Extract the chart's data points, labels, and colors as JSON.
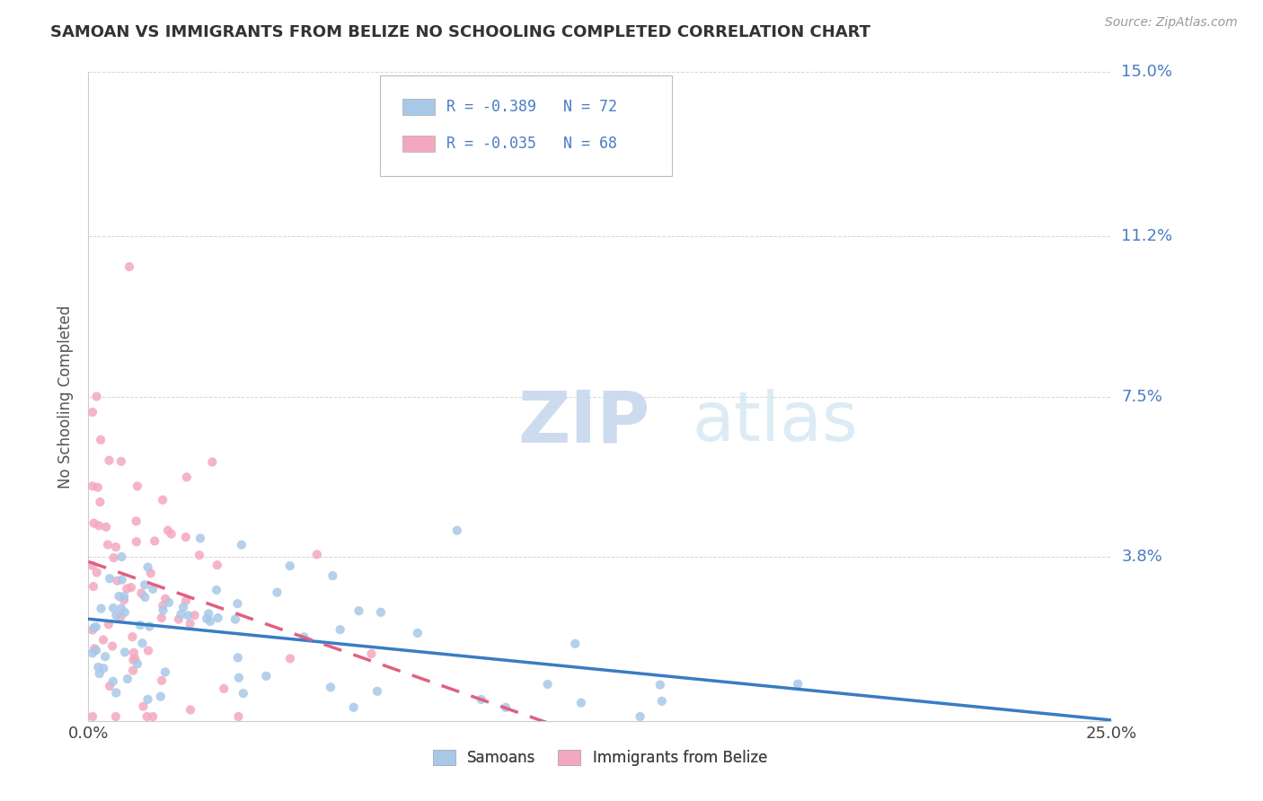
{
  "title": "SAMOAN VS IMMIGRANTS FROM BELIZE NO SCHOOLING COMPLETED CORRELATION CHART",
  "source_text": "Source: ZipAtlas.com",
  "ylabel": "No Schooling Completed",
  "xlim": [
    0.0,
    0.25
  ],
  "ylim": [
    0.0,
    0.15
  ],
  "xticklabels": [
    "0.0%",
    "25.0%"
  ],
  "ytick_values": [
    0.0,
    0.038,
    0.075,
    0.112,
    0.15
  ],
  "ytick_right_labels": {
    "0.038": "3.8%",
    "0.075": "7.5%",
    "0.112": "11.2%",
    "0.15": "15.0%"
  },
  "grid_color": "#cccccc",
  "background_color": "#ffffff",
  "legend_labels": [
    "Samoans",
    "Immigrants from Belize"
  ],
  "samoan_color": "#a8c8e8",
  "belize_color": "#f4a8c0",
  "samoan_line_color": "#3a7cc4",
  "belize_line_color": "#e06080",
  "r_samoan": -0.389,
  "n_samoan": 72,
  "r_belize": -0.035,
  "n_belize": 68,
  "watermark_zip": "ZIP",
  "watermark_atlas": "atlas",
  "label_color": "#4a7cc4",
  "title_color": "#333333",
  "source_color": "#999999"
}
